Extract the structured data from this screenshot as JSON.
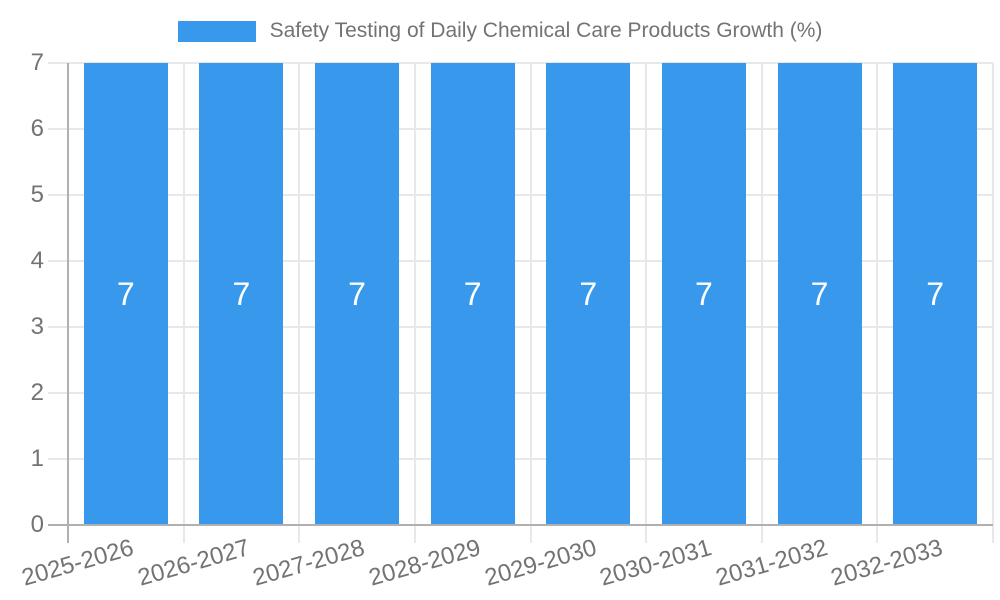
{
  "chart_data": {
    "type": "bar",
    "title": "Safety Testing of Daily Chemical Care Products Growth (%)",
    "categories": [
      "2025-2026",
      "2026-2027",
      "2027-2028",
      "2028-2029",
      "2029-2030",
      "2030-2031",
      "2031-2032",
      "2032-2033"
    ],
    "series": [
      {
        "name": "Safety Testing of Daily Chemical Care Products Growth (%)",
        "values": [
          7,
          7,
          7,
          7,
          7,
          7,
          7,
          7
        ]
      }
    ],
    "value_labels": [
      "7",
      "7",
      "7",
      "7",
      "7",
      "7",
      "7",
      "7"
    ],
    "xlabel": "",
    "ylabel": "",
    "ylim": [
      0,
      7
    ],
    "y_ticks": [
      0,
      1,
      2,
      3,
      4,
      5,
      6,
      7
    ],
    "grid": true,
    "legend_position": "top-center",
    "colors": {
      "bar": "#3898ec",
      "bar_value_label": "#ffffff",
      "axis_text": "#737373",
      "grid_line": "#e8e8e8",
      "axis_line": "#b0b0b0",
      "background": "#ffffff"
    }
  }
}
